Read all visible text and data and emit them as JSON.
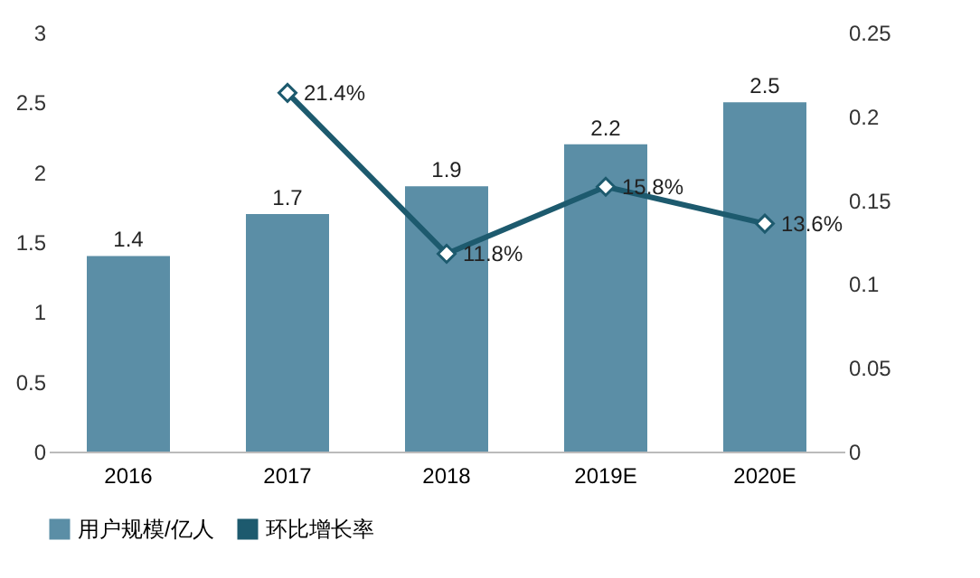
{
  "chart_data": {
    "type": "bar",
    "categories": [
      "2016",
      "2017",
      "2018",
      "2019E",
      "2020E"
    ],
    "series": [
      {
        "name": "用户规模/亿人",
        "color": "#5b8ea6",
        "values": [
          1.4,
          1.7,
          1.9,
          2.2,
          2.5
        ]
      },
      {
        "name": "环比增长率",
        "type": "line",
        "axis": "y2",
        "color": "#1d5a6e",
        "marker": "diamond",
        "values": [
          null,
          0.214,
          0.118,
          0.158,
          0.136
        ],
        "value_labels": [
          null,
          "21.4%",
          "11.8%",
          "15.8%",
          "13.6%"
        ]
      }
    ],
    "data_labels": true,
    "ylim": [
      0,
      3
    ],
    "yticks": [
      0,
      0.5,
      1,
      1.5,
      2,
      2.5,
      3
    ],
    "y2lim": [
      0,
      0.25
    ],
    "y2ticks": [
      0,
      0.05,
      0.1,
      0.15,
      0.2,
      0.25
    ],
    "grid": false,
    "legend": "bottom"
  }
}
